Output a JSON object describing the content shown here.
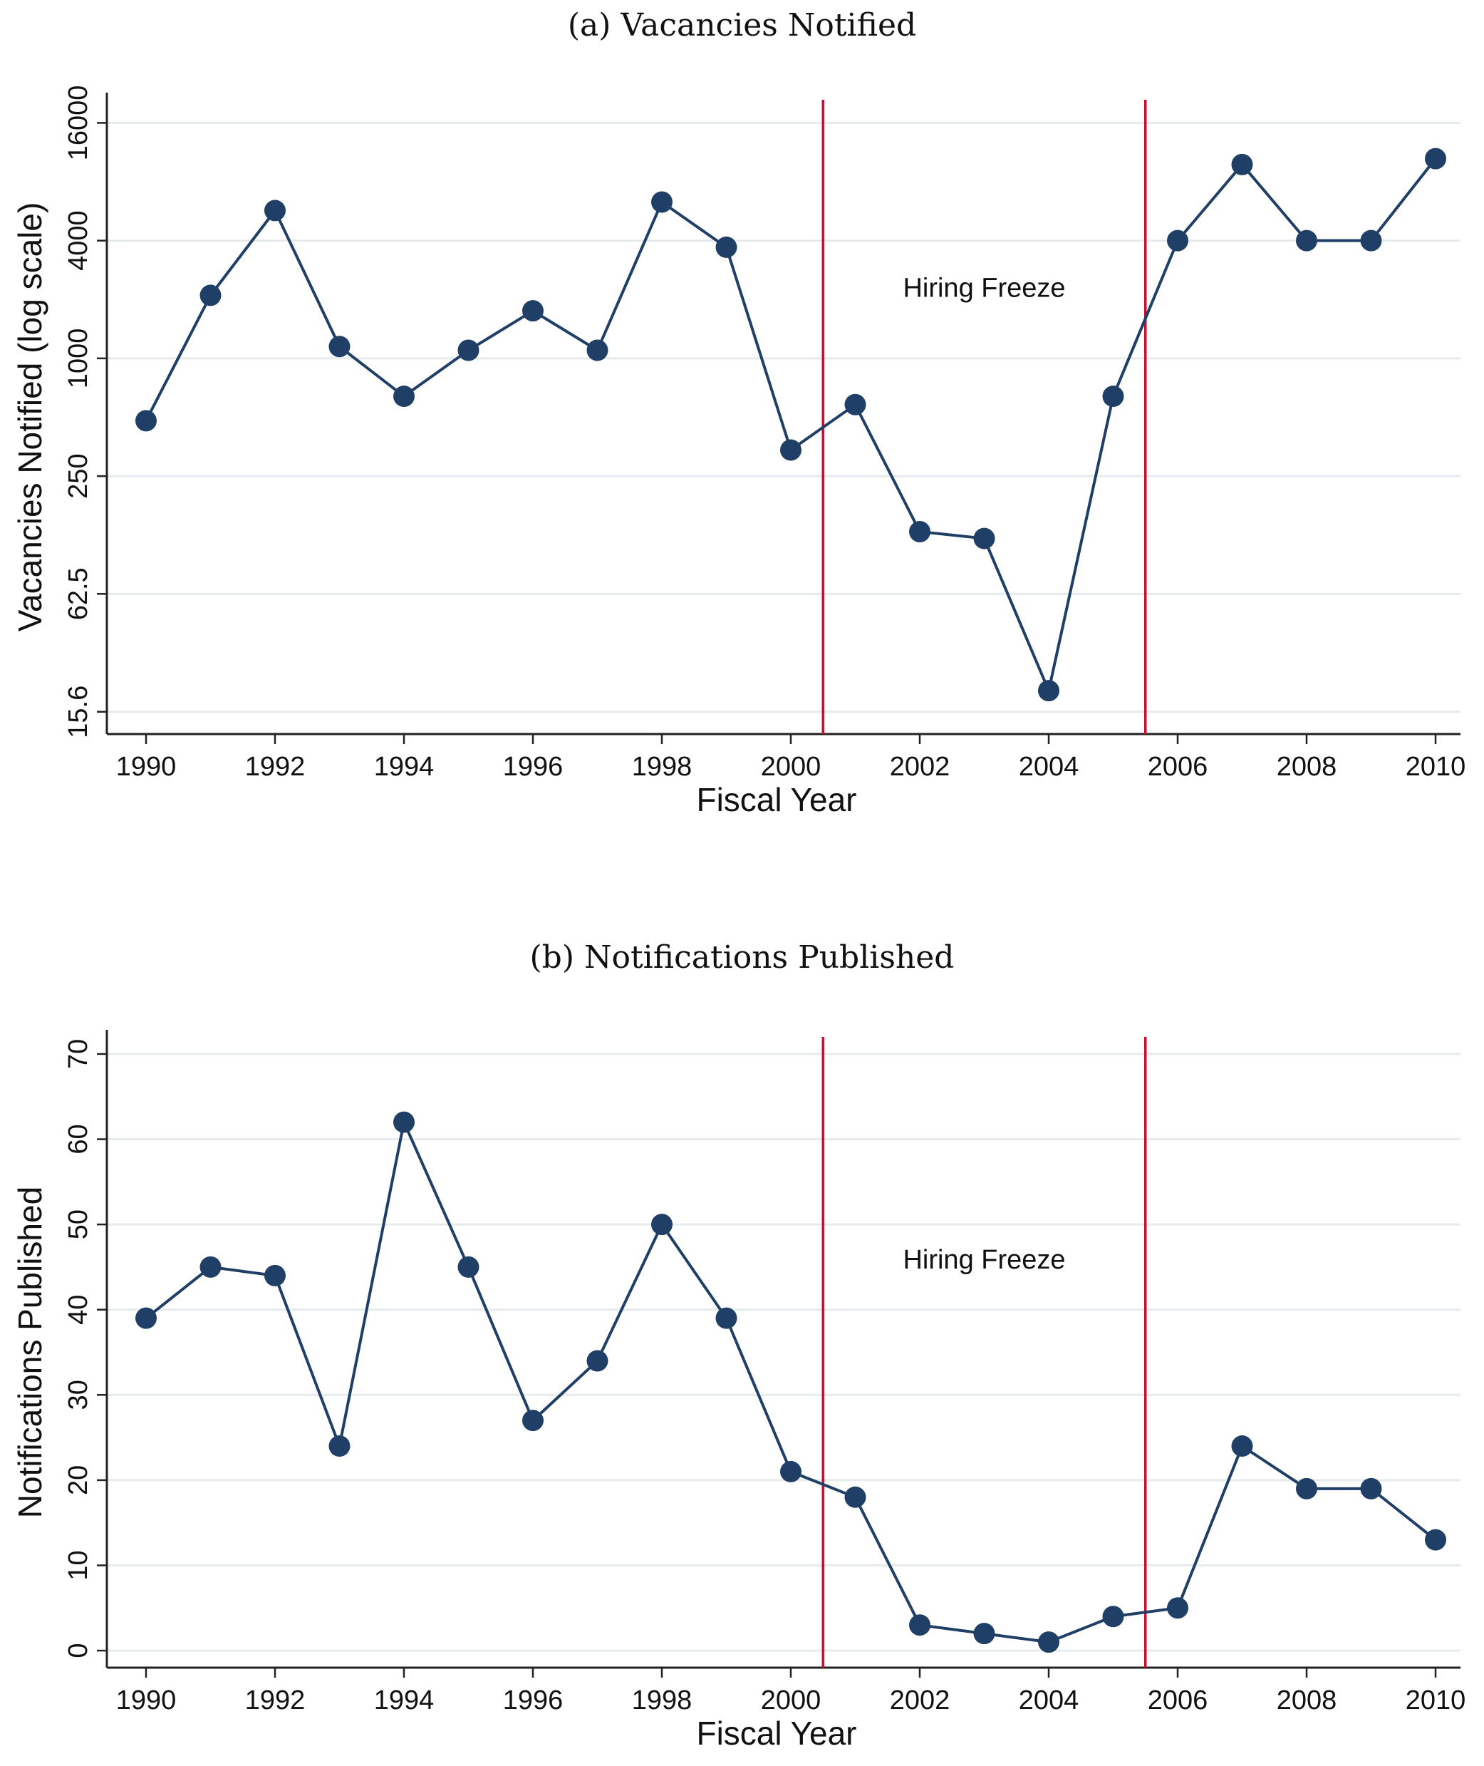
{
  "chart_data": [
    {
      "type": "line",
      "title": "(a) Vacancies Notified",
      "xlabel": "Fiscal Year",
      "ylabel": "Vacancies Notified (log scale)",
      "y_scale": "log",
      "ylim": [
        12,
        21000
      ],
      "xlim": [
        1990,
        2010
      ],
      "x_ticks": [
        "1990",
        "1992",
        "1994",
        "1996",
        "1998",
        "2000",
        "2002",
        "2004",
        "2006",
        "2008",
        "2010"
      ],
      "y_ticks": [
        15.6,
        62.5,
        250,
        1000,
        4000,
        16000
      ],
      "y_tick_labels": [
        "15.6",
        "62.5",
        "250",
        "1000",
        "4000",
        "16000"
      ],
      "grid": true,
      "series": [
        {
          "x": [
            1990,
            1991,
            1992,
            1993,
            1994,
            1995,
            1996,
            1997,
            1998,
            1999,
            2000,
            2001,
            2002,
            2003,
            2004,
            2005,
            2006,
            2007,
            2008,
            2009,
            2010
          ],
          "values": [
            480,
            2100,
            5700,
            1150,
            640,
            1100,
            1750,
            1100,
            6300,
            3700,
            340,
            580,
            130,
            120,
            20,
            640,
            4000,
            9800,
            4000,
            4000,
            10500
          ]
        }
      ],
      "reference_lines_x": [
        2000.5,
        2005.5
      ],
      "annotation": "Hiring Freeze",
      "colors": {
        "series": "#1f3f66",
        "reference": "#c8102e",
        "grid": "#e6ecee"
      }
    },
    {
      "type": "line",
      "title": "(b) Notifications Published",
      "xlabel": "Fiscal Year",
      "ylabel": "Notifications Published",
      "ylim": [
        -2,
        72
      ],
      "xlim": [
        1990,
        2010
      ],
      "x_ticks": [
        "1990",
        "1992",
        "1994",
        "1996",
        "1998",
        "2000",
        "2002",
        "2004",
        "2006",
        "2008",
        "2010"
      ],
      "y_ticks": [
        0,
        10,
        20,
        30,
        40,
        50,
        60,
        70
      ],
      "y_tick_labels": [
        "0",
        "10",
        "20",
        "30",
        "40",
        "50",
        "60",
        "70"
      ],
      "grid": true,
      "series": [
        {
          "x": [
            1990,
            1991,
            1992,
            1993,
            1994,
            1995,
            1996,
            1997,
            1998,
            1999,
            2000,
            2001,
            2002,
            2003,
            2004,
            2005,
            2006,
            2007,
            2008,
            2009,
            2010
          ],
          "values": [
            39,
            45,
            44,
            24,
            62,
            45,
            27,
            34,
            50,
            39,
            21,
            18,
            3,
            2,
            1,
            4,
            5,
            24,
            19,
            19,
            13
          ]
        }
      ],
      "reference_lines_x": [
        2000.5,
        2005.5
      ],
      "annotation": "Hiring Freeze",
      "colors": {
        "series": "#1f3f66",
        "reference": "#c8102e",
        "grid": "#e6ecee"
      }
    }
  ]
}
